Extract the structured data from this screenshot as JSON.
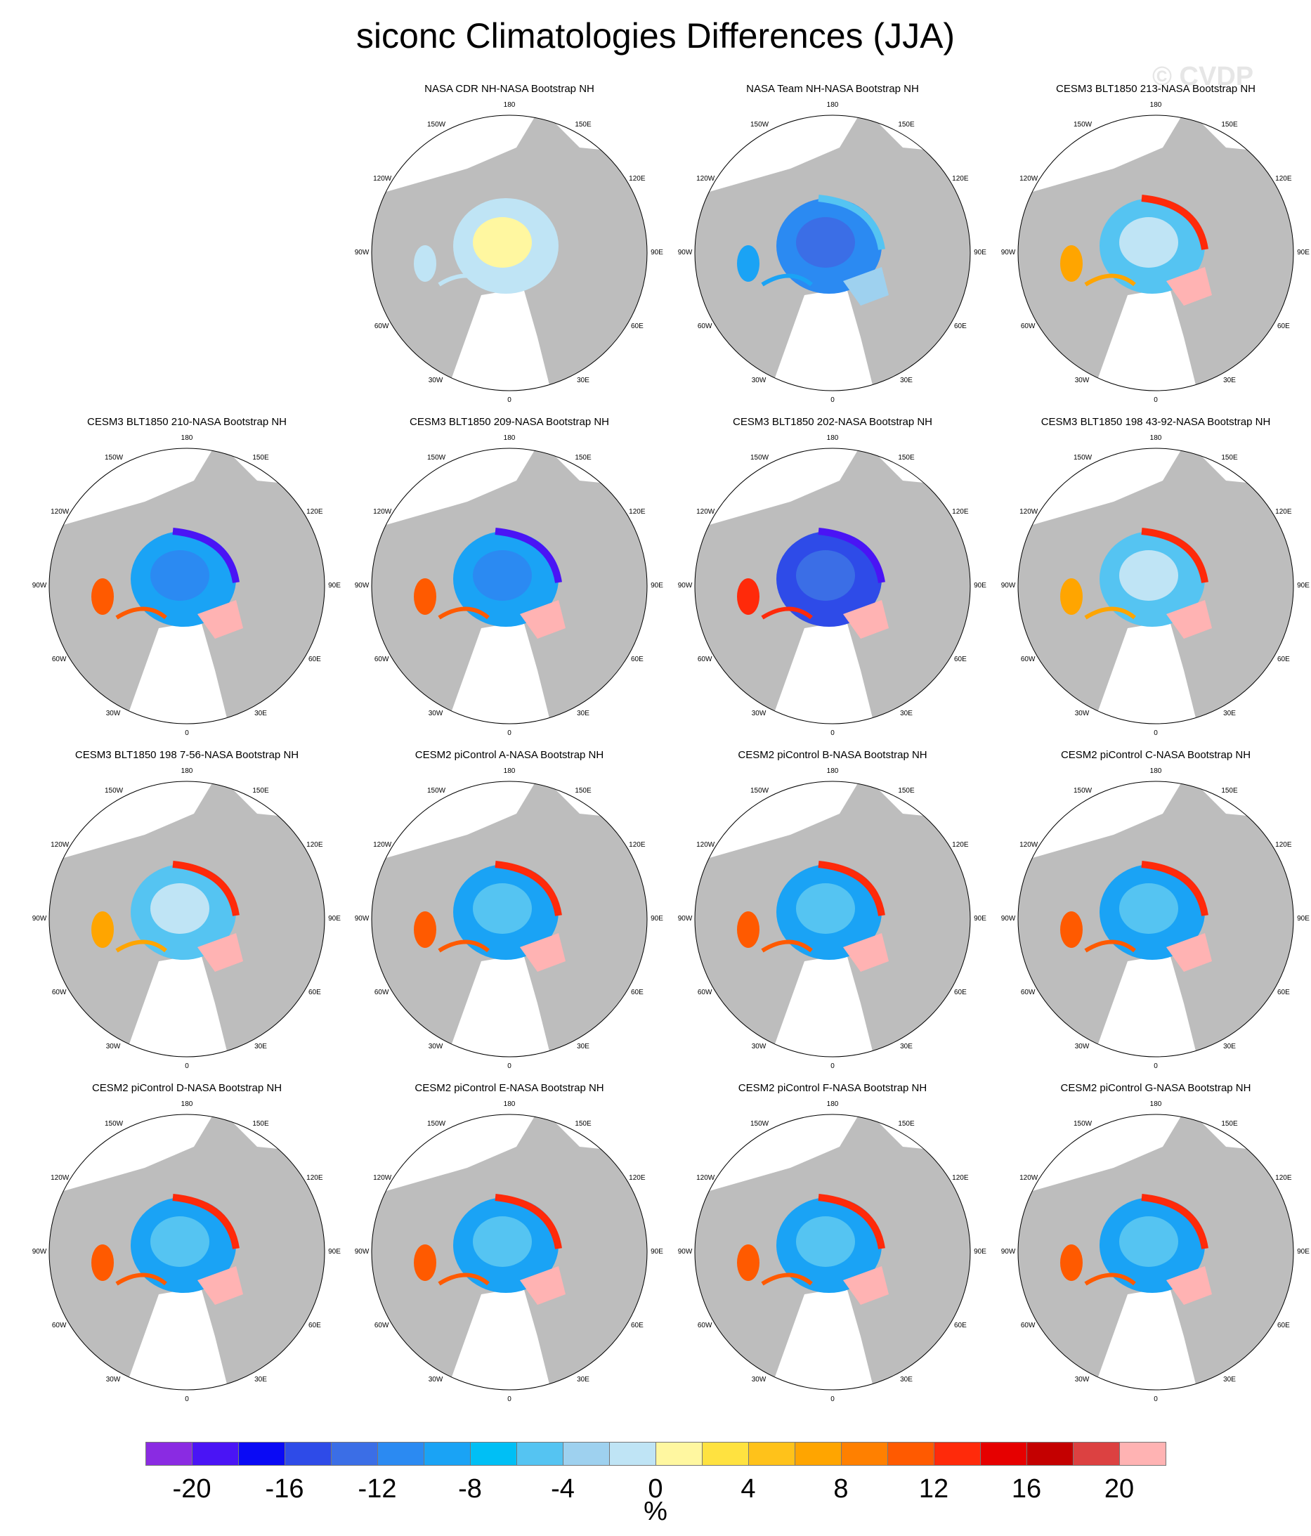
{
  "title": "siconc Climatologies Differences (JJA)",
  "watermark": "© CVDP",
  "lon_labels": [
    "180",
    "150E",
    "120E",
    "90E",
    "60E",
    "30E",
    "0",
    "30W",
    "60W",
    "90W",
    "120W",
    "150W"
  ],
  "panels": [
    {
      "title": "NASA CDR NH-NASA Bootstrap NH",
      "pattern": "cdr"
    },
    {
      "title": "NASA Team NH-NASA Bootstrap NH",
      "pattern": "team"
    },
    {
      "title": "CESM3 BLT1850 213-NASA Bootstrap NH",
      "pattern": "warm"
    },
    {
      "title": "CESM3 BLT1850 210-NASA Bootstrap NH",
      "pattern": "cool"
    },
    {
      "title": "CESM3 BLT1850 209-NASA Bootstrap NH",
      "pattern": "cool"
    },
    {
      "title": "CESM3 BLT1850 202-NASA Bootstrap NH",
      "pattern": "coolest"
    },
    {
      "title": "CESM3 BLT1850 198 43-92-NASA Bootstrap NH",
      "pattern": "warm"
    },
    {
      "title": "CESM3 BLT1850 198 7-56-NASA Bootstrap NH",
      "pattern": "warm"
    },
    {
      "title": "CESM2 piControl A-NASA Bootstrap NH",
      "pattern": "pi"
    },
    {
      "title": "CESM2 piControl B-NASA Bootstrap NH",
      "pattern": "pi"
    },
    {
      "title": "CESM2 piControl C-NASA Bootstrap NH",
      "pattern": "pi"
    },
    {
      "title": "CESM2 piControl D-NASA Bootstrap NH",
      "pattern": "pi"
    },
    {
      "title": "CESM2 piControl E-NASA Bootstrap NH",
      "pattern": "pi"
    },
    {
      "title": "CESM2 piControl F-NASA Bootstrap NH",
      "pattern": "pi"
    },
    {
      "title": "CESM2 piControl G-NASA Bootstrap NH",
      "pattern": "pi"
    }
  ],
  "colorbar": {
    "colors": [
      "#8a2be2",
      "#4a14f5",
      "#0a0af5",
      "#2e4be8",
      "#3b6ee6",
      "#2b8af2",
      "#1aa3f5",
      "#00bff5",
      "#55c4f2",
      "#9ed1ef",
      "#bfe4f5",
      "#fff7a0",
      "#ffe240",
      "#ffc21a",
      "#ffa500",
      "#ff8000",
      "#ff5a00",
      "#ff2a0a",
      "#e60000",
      "#c40000",
      "#dc4141",
      "#ffb3b3"
    ],
    "tick_labels": [
      "-20",
      "-16",
      "-12",
      "-8",
      "-4",
      "0",
      "4",
      "8",
      "12",
      "16",
      "20"
    ],
    "units": "%"
  }
}
